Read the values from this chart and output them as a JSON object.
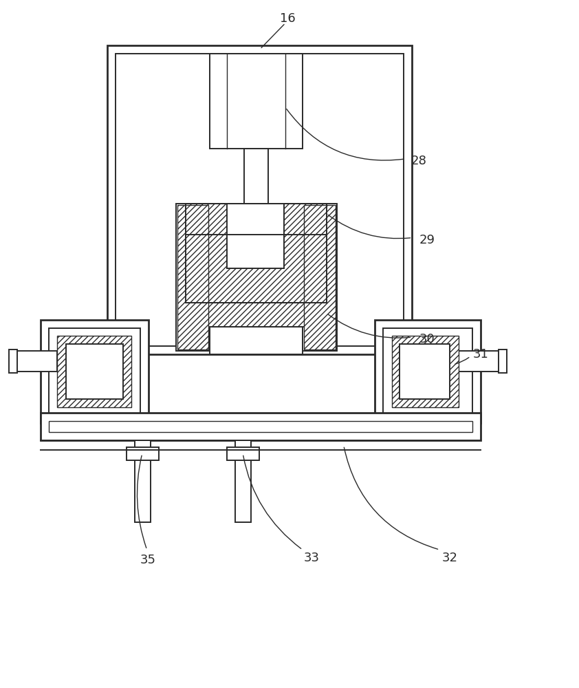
{
  "bg_color": "#ffffff",
  "line_color": "#2a2a2a",
  "label_color": "#2a2a2a",
  "figsize": [
    8.42,
    10.0
  ],
  "dpi": 100,
  "lw_outer": 2.0,
  "lw_inner": 1.4,
  "lw_thin": 1.0
}
